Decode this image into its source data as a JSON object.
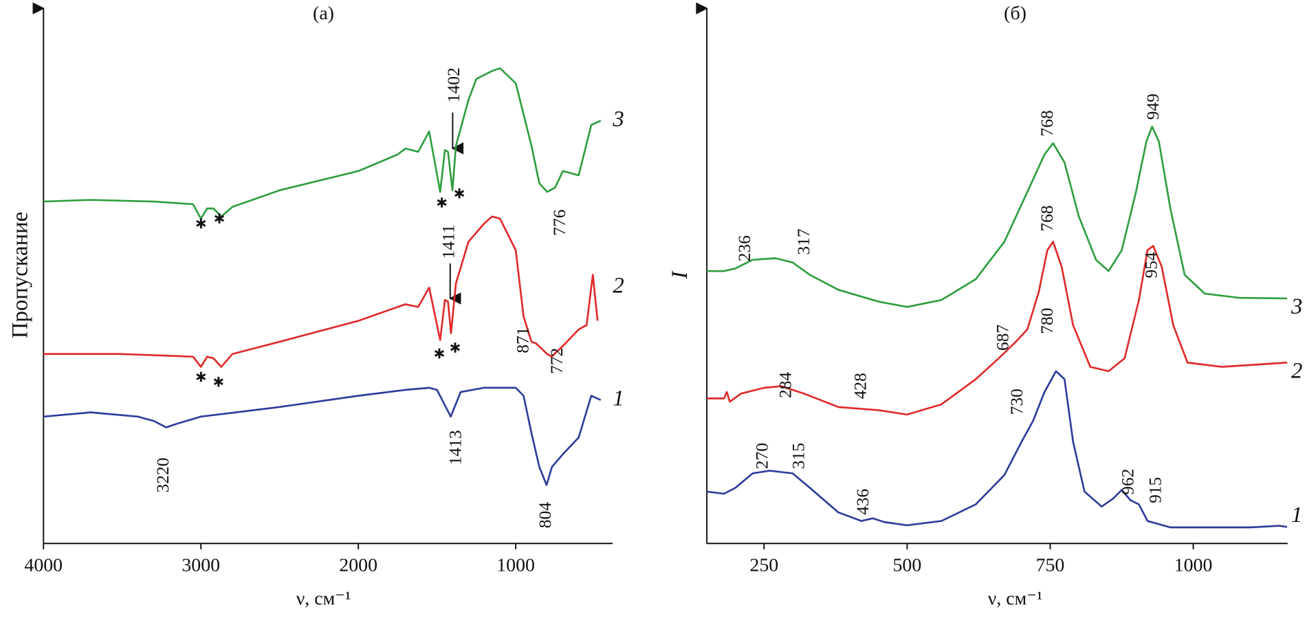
{
  "chart_data": [
    {
      "type": "line",
      "title": "(a)",
      "x_label": "ν, см⁻¹",
      "y_label": "Пропускание",
      "xlim": [
        4000,
        400
      ],
      "ylim": [
        0,
        100
      ],
      "xticks": [
        4000,
        3000,
        2000,
        1000
      ],
      "series": [
        {
          "name": "1",
          "color": "#2e3d9c",
          "x": [
            4000,
            3700,
            3400,
            3300,
            3220,
            3150,
            3000,
            2500,
            2000,
            1700,
            1550,
            1500,
            1413,
            1350,
            1200,
            1000,
            950,
            900,
            850,
            804,
            770,
            700,
            600,
            520,
            460
          ],
          "values": [
            23.7,
            24.5,
            23.7,
            22.9,
            21.7,
            22.4,
            23.7,
            25.5,
            27.6,
            28.7,
            29.1,
            28.7,
            23.7,
            28.3,
            29.1,
            29.1,
            27.6,
            20.6,
            14.3,
            10.9,
            14.3,
            16.7,
            19.8,
            27.6,
            26.8
          ]
        },
        {
          "name": "2",
          "color": "#e02a2a",
          "x": [
            4000,
            3500,
            3050,
            3000,
            2960,
            2920,
            2870,
            2800,
            2500,
            2000,
            1700,
            1620,
            1550,
            1480,
            1450,
            1430,
            1411,
            1380,
            1300,
            1200,
            1150,
            1100,
            1000,
            950,
            900,
            871,
            800,
            772,
            700,
            600,
            550,
            510,
            480
          ],
          "values": [
            35.4,
            35.4,
            34.9,
            33.0,
            34.9,
            34.6,
            33.0,
            35.4,
            37.7,
            41.6,
            44.7,
            44.2,
            47.8,
            38.0,
            45.5,
            45.2,
            39.3,
            48.6,
            56.4,
            59.8,
            61.1,
            60.7,
            54.8,
            42.4,
            37.7,
            37.4,
            35.4,
            34.9,
            36.9,
            40.0,
            40.8,
            50.2,
            41.6
          ]
        },
        {
          "name": "3",
          "color": "#2f9e3f",
          "x": [
            4000,
            3700,
            3300,
            3050,
            3000,
            2960,
            2920,
            2870,
            2800,
            2500,
            2000,
            1750,
            1700,
            1620,
            1550,
            1480,
            1450,
            1430,
            1402,
            1380,
            1300,
            1250,
            1150,
            1100,
            1000,
            900,
            850,
            800,
            750,
            700,
            600,
            520,
            460
          ],
          "values": [
            63.9,
            64.2,
            63.9,
            63.4,
            60.7,
            62.6,
            62.6,
            61.1,
            62.9,
            66.0,
            69.6,
            72.7,
            73.8,
            73.2,
            77.0,
            65.7,
            73.5,
            73.2,
            66.0,
            74.3,
            82.9,
            86.8,
            88.3,
            88.8,
            86.0,
            74.3,
            67.3,
            65.7,
            66.5,
            69.6,
            68.8,
            78.2,
            79.0
          ]
        }
      ],
      "annotations": [
        1402,
        776,
        1411,
        871,
        772,
        3220,
        1413,
        804
      ]
    },
    {
      "type": "line",
      "title": "(б)",
      "x_label": "ν, см⁻¹",
      "y_label": "I",
      "xlim": [
        150,
        1165
      ],
      "ylim": [
        0,
        100
      ],
      "xticks": [
        250,
        500,
        750,
        1000
      ],
      "series": [
        {
          "name": "1",
          "color": "#2e3d9c",
          "x": [
            150,
            180,
            200,
            230,
            260,
            300,
            330,
            380,
            420,
            440,
            460,
            500,
            560,
            620,
            670,
            700,
            720,
            740,
            760,
            775,
            790,
            810,
            840,
            860,
            875,
            890,
            905,
            920,
            960,
            1100,
            1150,
            1164
          ],
          "values": [
            9.7,
            9.3,
            10.4,
            13.1,
            13.6,
            13.1,
            10.4,
            5.8,
            4.2,
            4.7,
            4.0,
            3.4,
            4.2,
            7.3,
            12.8,
            19.0,
            22.9,
            28.3,
            32.2,
            30.7,
            19.0,
            9.7,
            6.9,
            8.4,
            10.0,
            8.1,
            7.3,
            4.2,
            3.0,
            3.0,
            3.3,
            3.1
          ]
        },
        {
          "name": "2",
          "color": "#e02a2a",
          "x": [
            150,
            180,
            185,
            190,
            210,
            250,
            280,
            320,
            380,
            450,
            500,
            560,
            620,
            660,
            690,
            710,
            730,
            745,
            755,
            770,
            790,
            820,
            852,
            880,
            905,
            920,
            930,
            945,
            965,
            990,
            1050,
            1164
          ],
          "values": [
            27.1,
            27.1,
            28.3,
            26.5,
            28.0,
            29.1,
            29.4,
            28.0,
            25.5,
            24.9,
            24.1,
            26.0,
            30.7,
            34.6,
            37.7,
            40.0,
            47.0,
            54.8,
            56.4,
            51.7,
            40.8,
            33.0,
            32.2,
            34.6,
            45.5,
            54.8,
            55.6,
            51.7,
            40.8,
            33.8,
            33.0,
            33.8
          ]
        },
        {
          "name": "3",
          "color": "#2f9e3f",
          "x": [
            150,
            180,
            200,
            230,
            270,
            300,
            330,
            380,
            450,
            500,
            560,
            620,
            670,
            710,
            740,
            755,
            775,
            800,
            830,
            852,
            875,
            900,
            918,
            928,
            940,
            960,
            985,
            1020,
            1080,
            1164
          ],
          "values": [
            50.9,
            50.9,
            51.4,
            53.0,
            53.3,
            52.5,
            50.2,
            47.4,
            45.2,
            44.2,
            45.5,
            49.4,
            56.4,
            65.7,
            72.7,
            74.8,
            71.2,
            61.1,
            53.0,
            50.9,
            54.8,
            65.7,
            75.1,
            77.9,
            75.1,
            62.6,
            50.2,
            46.7,
            45.9,
            45.8
          ]
        }
      ],
      "annotations": [
        236,
        317,
        768,
        949,
        687,
        768,
        954,
        284,
        428,
        730,
        780,
        270,
        315,
        436,
        962,
        915
      ]
    }
  ]
}
